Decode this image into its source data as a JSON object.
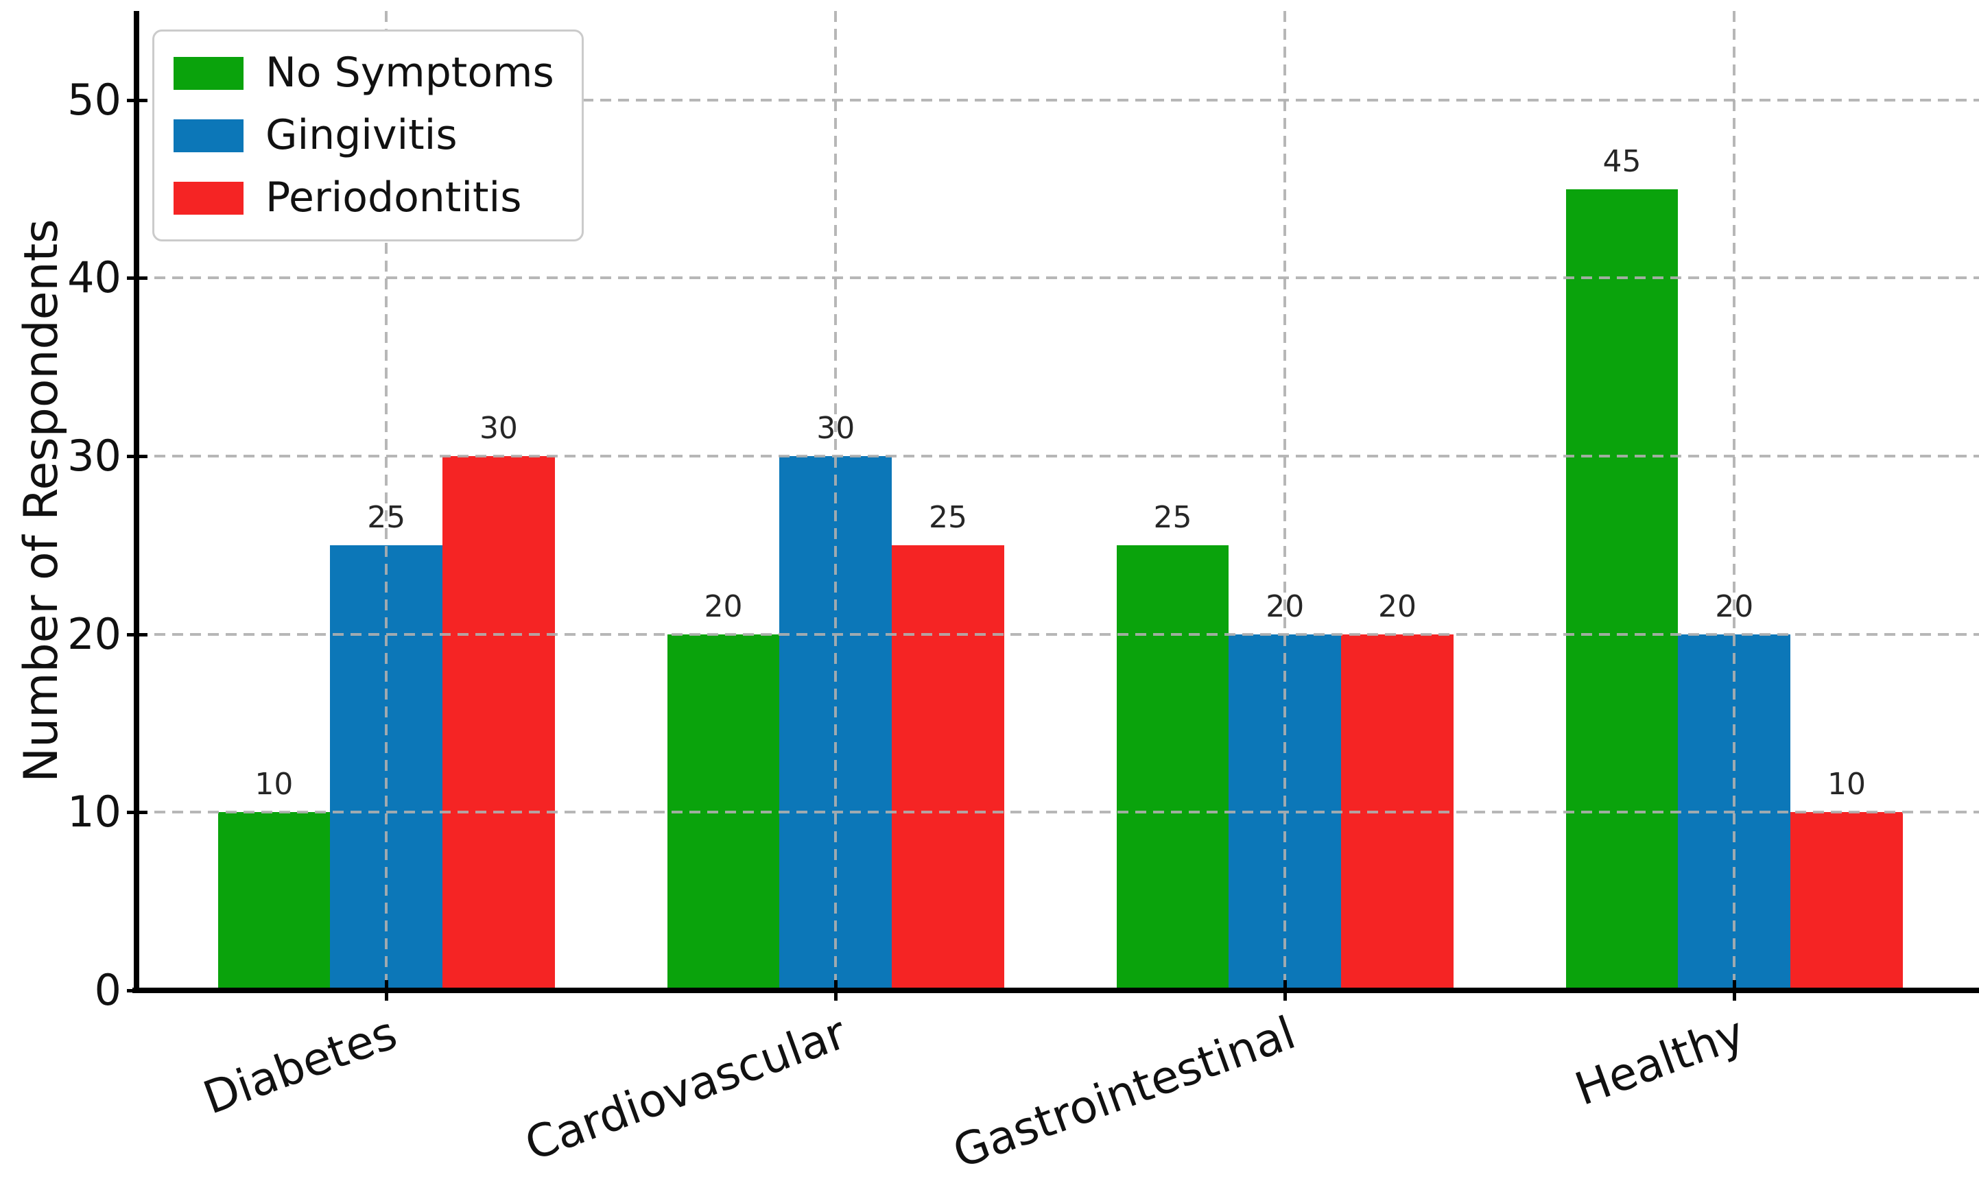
{
  "chart_data": {
    "type": "bar",
    "title": "",
    "categories": [
      "Diabetes",
      "Cardiovascular",
      "Gastrointestinal",
      "Healthy"
    ],
    "series": [
      {
        "name": "No Symptoms",
        "color": "#0aa30c",
        "values": [
          10,
          20,
          25,
          45
        ]
      },
      {
        "name": "Gingivitis",
        "color": "#0c77b8",
        "values": [
          25,
          30,
          20,
          20
        ]
      },
      {
        "name": "Periodontitis",
        "color": "#f52424",
        "values": [
          30,
          25,
          20,
          10
        ]
      }
    ],
    "xlabel": "",
    "ylabel": "Number of Respondents",
    "ylim": [
      0,
      55
    ],
    "yticks": [
      0,
      10,
      20,
      30,
      40,
      50
    ],
    "bar_value_labels_shown": true,
    "xtick_rotation_deg": 20,
    "grid": {
      "style": "dashed",
      "color": "#bcbcbc",
      "axes": "both",
      "above_bars": true
    },
    "legend": {
      "position": "upper left"
    }
  }
}
